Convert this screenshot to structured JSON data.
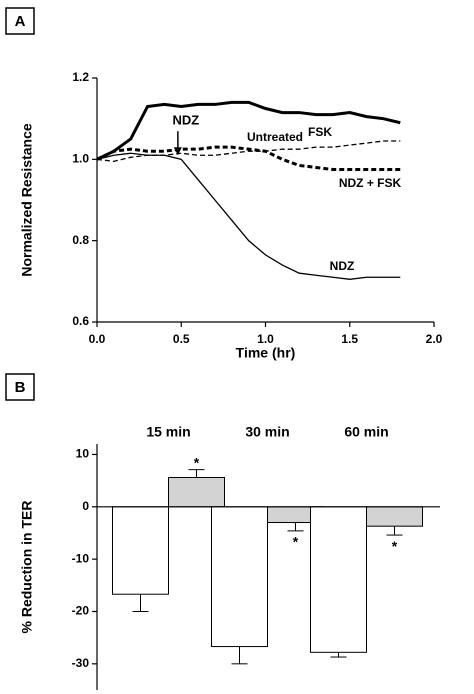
{
  "chart_data": [
    {
      "type": "line",
      "panel": "A",
      "x_label": "Time (hr)",
      "y_label": "Normalized Resistance",
      "x": [
        0,
        0.1,
        0.2,
        0.3,
        0.4,
        0.5,
        0.6,
        0.7,
        0.8,
        0.9,
        1.0,
        1.1,
        1.2,
        1.3,
        1.4,
        1.5,
        1.6,
        1.7,
        1.8
      ],
      "series": [
        {
          "name": "FSK",
          "color": "#000000",
          "style": "solid",
          "width": "thick",
          "values": [
            1.0,
            1.02,
            1.05,
            1.13,
            1.135,
            1.13,
            1.135,
            1.135,
            1.14,
            1.14,
            1.125,
            1.115,
            1.115,
            1.11,
            1.11,
            1.115,
            1.105,
            1.1,
            1.09
          ]
        },
        {
          "name": "Untreated",
          "color": "#000000",
          "style": "dashed",
          "width": "thin",
          "values": [
            1.0,
            0.995,
            1.005,
            1.01,
            1.01,
            1.015,
            1.01,
            1.01,
            1.015,
            1.02,
            1.02,
            1.025,
            1.025,
            1.03,
            1.03,
            1.035,
            1.04,
            1.045,
            1.045
          ]
        },
        {
          "name": "NDZ + FSK",
          "color": "#000000",
          "style": "dashed",
          "width": "thick",
          "values": [
            1.0,
            1.02,
            1.025,
            1.02,
            1.02,
            1.025,
            1.025,
            1.03,
            1.03,
            1.025,
            1.02,
            1.0,
            0.985,
            0.98,
            0.975,
            0.975,
            0.975,
            0.975,
            0.975
          ]
        },
        {
          "name": "NDZ",
          "color": "#000000",
          "style": "solid",
          "width": "thin",
          "values": [
            1.0,
            1.01,
            1.015,
            1.01,
            1.01,
            1.0,
            0.95,
            0.9,
            0.85,
            0.8,
            0.765,
            0.74,
            0.72,
            0.715,
            0.71,
            0.705,
            0.71,
            0.71,
            0.71
          ]
        }
      ],
      "annotations": [
        {
          "text": "NDZ",
          "x": 0.48,
          "y": 1.01
        }
      ],
      "xlim": [
        0,
        2
      ],
      "xticks": [
        {
          "value": 0,
          "label": "0.0"
        },
        0.5,
        {
          "value": 1,
          "label": "1.0"
        },
        1.5,
        {
          "value": 2,
          "label": "2.0"
        }
      ],
      "ylim": [
        0.6,
        1.2
      ],
      "yticks": [
        0.6,
        0.8,
        {
          "value": 1,
          "label": "1.0"
        },
        1.2
      ]
    },
    {
      "type": "bar",
      "panel": "B",
      "y_label": "% Reduction in TER",
      "categories": [
        "15 min",
        "30 min",
        "60 min"
      ],
      "series": [
        {
          "color": "#ffffff",
          "values": [
            -16.7,
            -26.7,
            -27.8
          ],
          "errors": [
            3.3,
            3.3,
            0.9
          ]
        },
        {
          "color": "#d3d3d3",
          "values": [
            5.6,
            -3.0,
            -3.7
          ],
          "errors": [
            1.5,
            1.6,
            1.7
          ],
          "markers": [
            "*",
            "*",
            "*"
          ]
        }
      ],
      "ylim": [
        -35,
        12
      ],
      "yticks": [
        10,
        0,
        -10,
        -20,
        -30
      ]
    }
  ]
}
